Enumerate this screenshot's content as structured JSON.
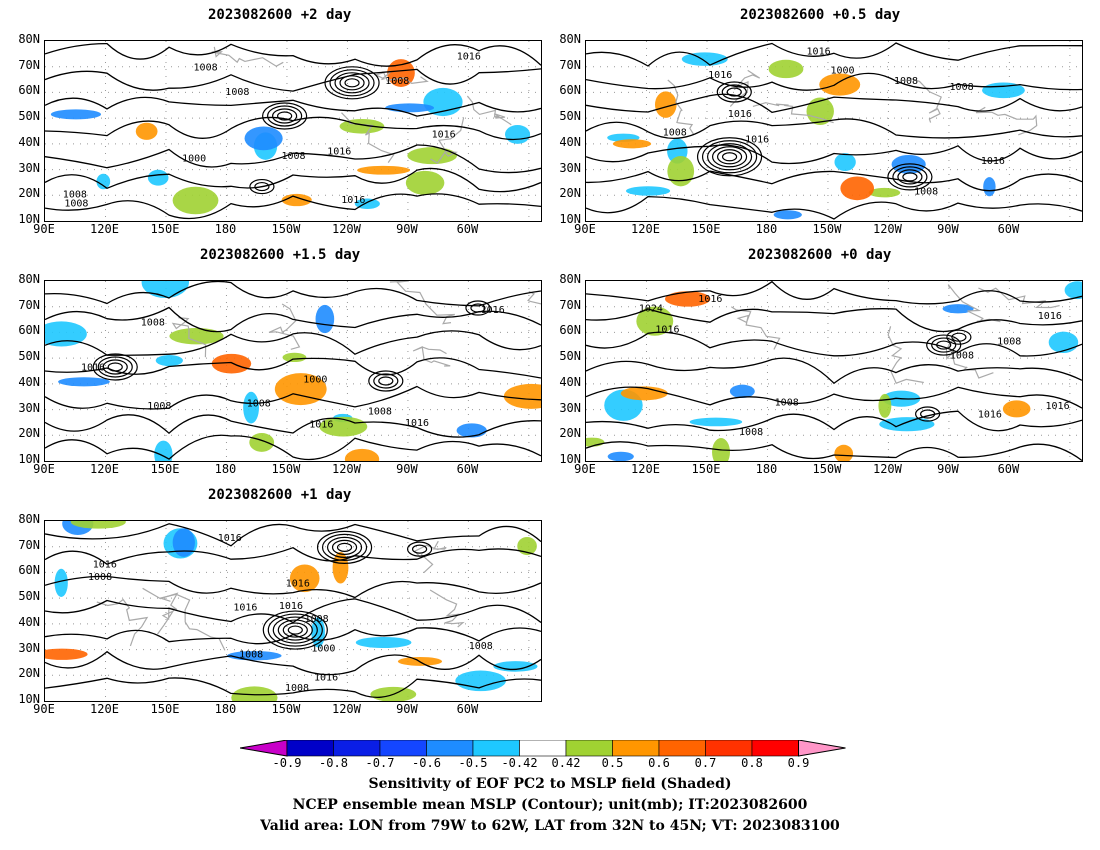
{
  "panels": [
    {
      "title": "2023082600 +2 day",
      "contour_labels": [
        "1008",
        "1016",
        "1008",
        "1016",
        "1008",
        "1000",
        "1016",
        "1016",
        "1008",
        "1008",
        "1008"
      ]
    },
    {
      "title": "2023082600 +0.5 day",
      "contour_labels": [
        "1016",
        "1000",
        "1008",
        "1016",
        "1008",
        "1016",
        "1016",
        "1008",
        "1008",
        "1016"
      ]
    },
    {
      "title": "2023082600 +1.5 day",
      "contour_labels": [
        "1008",
        "1008",
        "1016",
        "1016",
        "1000",
        "1008",
        "1008",
        "1016",
        "1016"
      ]
    },
    {
      "title": "2023082600 +0 day",
      "contour_labels": [
        "1016",
        "1008",
        "1016",
        "1008",
        "1008",
        "1016",
        "1024",
        "1016",
        "1016",
        "1008"
      ]
    },
    {
      "title": "2023082600 +1 day",
      "contour_labels": [
        "1008",
        "1016",
        "1016",
        "1016",
        "1016",
        "1000",
        "1016",
        "1008",
        "1008",
        "1016",
        "1008",
        "1008"
      ]
    }
  ],
  "axes": {
    "lat_labels": [
      "80N",
      "70N",
      "60N",
      "50N",
      "40N",
      "30N",
      "20N",
      "10N"
    ],
    "lon_labels": [
      "90E",
      "120E",
      "150E",
      "180",
      "150W",
      "120W",
      "90W",
      "60W"
    ]
  },
  "colorbar": {
    "ticks": [
      "-0.9",
      "-0.8",
      "-0.7",
      "-0.6",
      "-0.5",
      "-0.42",
      "0.42",
      "0.5",
      "0.6",
      "0.7",
      "0.8",
      "0.9"
    ],
    "colors": [
      "#c800c8",
      "#0000c8",
      "#0a1ee6",
      "#1446ff",
      "#1e8cff",
      "#1ec8ff",
      "#ffffff",
      "#a0d232",
      "#ff9600",
      "#ff6400",
      "#ff3200",
      "#ff0000",
      "#ff96c8"
    ]
  },
  "captions": [
    "Sensitivity of EOF PC2 to MSLP field (Shaded)",
    "NCEP ensemble mean MSLP (Contour); unit(mb); IT:2023082600",
    "Valid area: LON from 79W to 62W, LAT from 32N to 45N; VT: 2023083100"
  ],
  "map_features": {
    "positive_shading_color": "#ff9600",
    "negative_shading_color": "#1ec8ff",
    "green_shading_color": "#a0d232",
    "coastline_color": "#aaaaaa",
    "contour_color": "#000000"
  }
}
